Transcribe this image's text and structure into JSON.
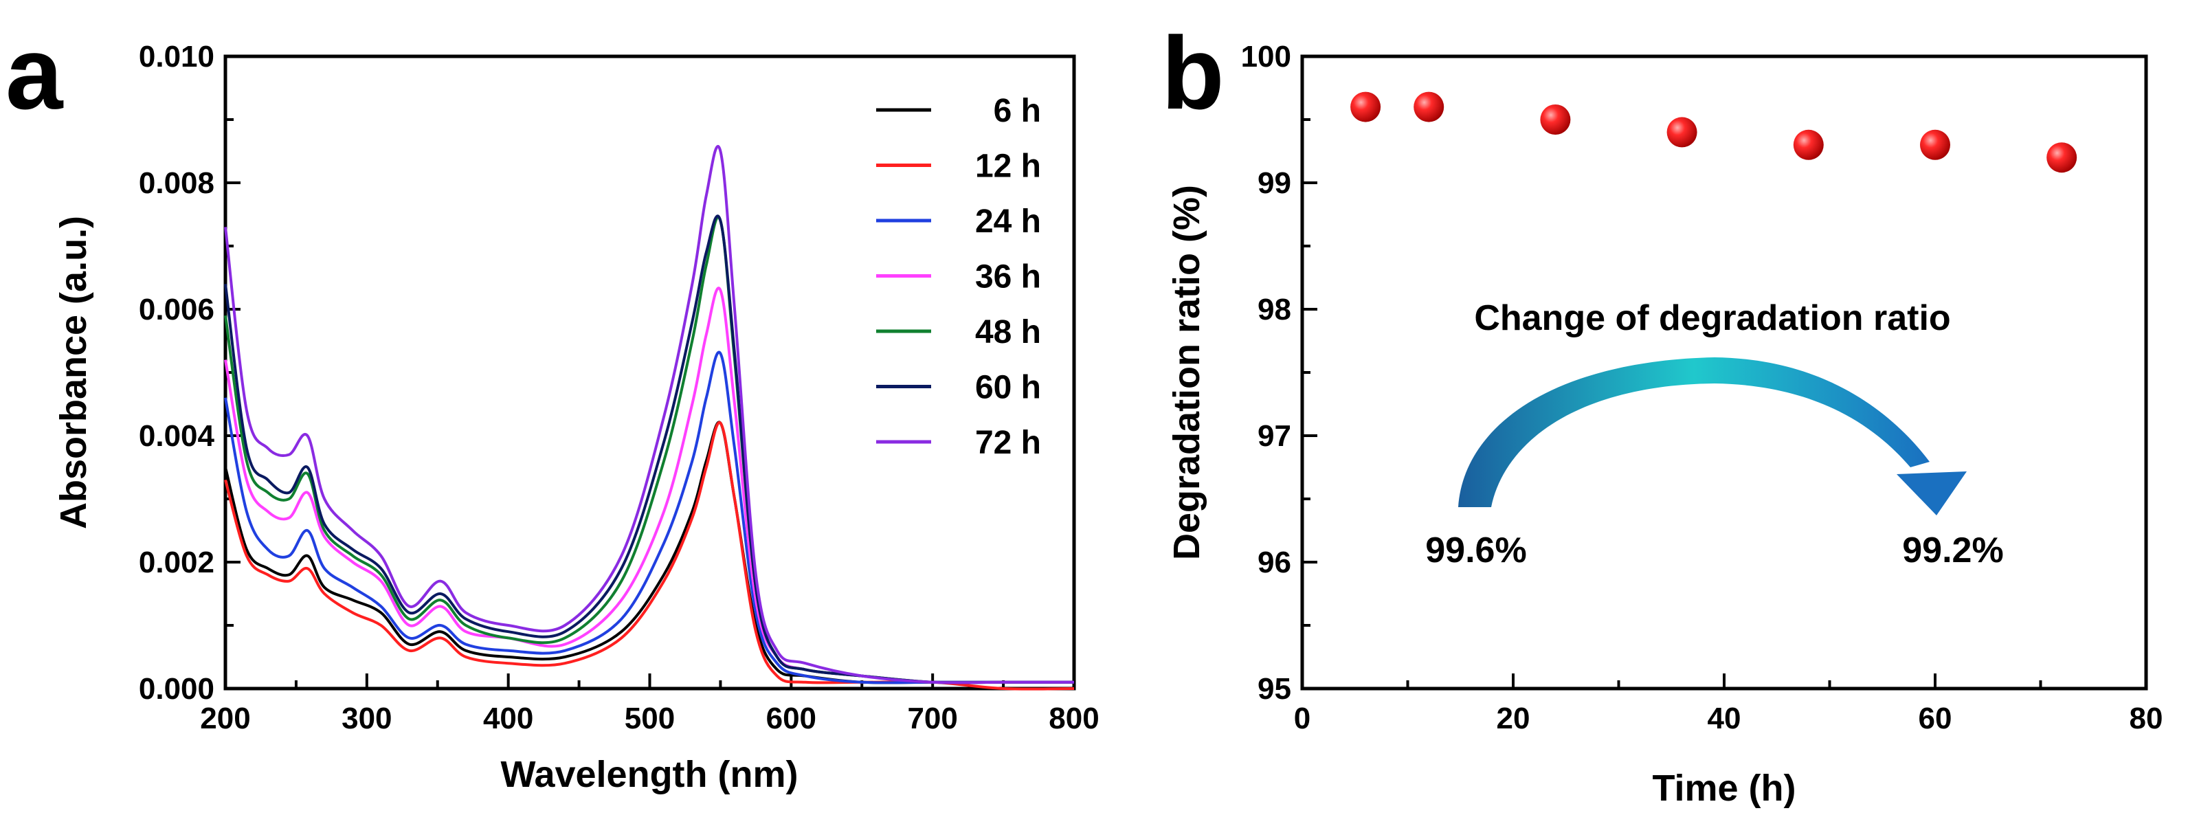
{
  "chart_data": [
    {
      "panel": "a",
      "type": "line",
      "xlabel": "Wavelength (nm)",
      "ylabel": "Absorbance (a.u.)",
      "xlim": [
        200,
        800
      ],
      "ylim": [
        0,
        0.01
      ],
      "xticks": [
        "200",
        "300",
        "400",
        "500",
        "600",
        "700",
        "800"
      ],
      "yticks": [
        "0.000",
        "0.002",
        "0.004",
        "0.006",
        "0.008",
        "0.010"
      ],
      "legend_position": "top-right",
      "x": [
        200,
        215,
        230,
        245,
        258,
        270,
        290,
        310,
        330,
        352,
        370,
        400,
        440,
        480,
        510,
        530,
        540,
        550,
        560,
        575,
        590,
        610,
        650,
        700,
        750,
        800
      ],
      "series": [
        {
          "name": "6 h",
          "color": "#000000",
          "values": [
            0.0035,
            0.0022,
            0.0019,
            0.0018,
            0.0021,
            0.0016,
            0.0014,
            0.0012,
            0.0007,
            0.0009,
            0.0006,
            0.0005,
            0.0005,
            0.0009,
            0.0018,
            0.0028,
            0.0036,
            0.0042,
            0.003,
            0.001,
            0.0003,
            0.0002,
            0.0001,
            0.0001,
            0.0001,
            0.0001
          ]
        },
        {
          "name": "12 h",
          "color": "#ff2020",
          "values": [
            0.0033,
            0.0021,
            0.0018,
            0.0017,
            0.0019,
            0.0015,
            0.0012,
            0.001,
            0.0006,
            0.0008,
            0.0005,
            0.0004,
            0.0004,
            0.0008,
            0.0017,
            0.0027,
            0.0035,
            0.0042,
            0.003,
            0.0009,
            0.0002,
            0.0001,
            0.0001,
            0.0001,
            0.0,
            0.0
          ]
        },
        {
          "name": "24 h",
          "color": "#2040e0",
          "values": [
            0.0046,
            0.0028,
            0.0022,
            0.0021,
            0.0025,
            0.0019,
            0.0016,
            0.0013,
            0.0008,
            0.001,
            0.0007,
            0.0006,
            0.0006,
            0.0011,
            0.0023,
            0.0036,
            0.0046,
            0.0053,
            0.0038,
            0.0012,
            0.0004,
            0.0002,
            0.0001,
            0.0001,
            0.0001,
            0.0001
          ]
        },
        {
          "name": "36 h",
          "color": "#ff40ff",
          "values": [
            0.0052,
            0.0033,
            0.0028,
            0.0027,
            0.0031,
            0.0024,
            0.002,
            0.0017,
            0.001,
            0.0013,
            0.0009,
            0.0008,
            0.0007,
            0.0014,
            0.0028,
            0.0045,
            0.0056,
            0.0063,
            0.0045,
            0.0014,
            0.0005,
            0.0003,
            0.0002,
            0.0001,
            0.0001,
            0.0001
          ]
        },
        {
          "name": "48 h",
          "color": "#108030",
          "values": [
            0.0059,
            0.0036,
            0.0031,
            0.003,
            0.0034,
            0.0025,
            0.0021,
            0.0018,
            0.0011,
            0.0014,
            0.001,
            0.0008,
            0.0008,
            0.0017,
            0.0036,
            0.0055,
            0.0067,
            0.0074,
            0.0052,
            0.0016,
            0.0005,
            0.0003,
            0.0002,
            0.0001,
            0.0001,
            0.0001
          ]
        },
        {
          "name": "60 h",
          "color": "#0a1a60",
          "values": [
            0.0064,
            0.0038,
            0.0033,
            0.0031,
            0.0035,
            0.0026,
            0.0022,
            0.0019,
            0.0012,
            0.0015,
            0.0011,
            0.0009,
            0.0009,
            0.0019,
            0.0039,
            0.0058,
            0.0069,
            0.0074,
            0.0053,
            0.0016,
            0.0005,
            0.0003,
            0.0002,
            0.0001,
            0.0001,
            0.0001
          ]
        },
        {
          "name": "72 h",
          "color": "#8a2be2",
          "values": [
            0.0073,
            0.0044,
            0.0038,
            0.0037,
            0.004,
            0.003,
            0.0025,
            0.0021,
            0.0013,
            0.0017,
            0.0012,
            0.001,
            0.001,
            0.0021,
            0.0043,
            0.0064,
            0.0078,
            0.0085,
            0.006,
            0.0018,
            0.0006,
            0.0004,
            0.0002,
            0.0001,
            0.0001,
            0.0001
          ]
        }
      ]
    },
    {
      "panel": "b",
      "type": "scatter",
      "xlabel": "Time (h)",
      "ylabel": "Degradation ratio (%)",
      "xlim": [
        0,
        80
      ],
      "ylim": [
        95,
        100
      ],
      "xticks": [
        "0",
        "20",
        "40",
        "60",
        "80"
      ],
      "yticks": [
        "95",
        "96",
        "97",
        "98",
        "99",
        "100"
      ],
      "marker_color": "#e01010",
      "x": [
        6,
        12,
        24,
        36,
        48,
        60,
        72
      ],
      "y": [
        99.6,
        99.6,
        99.5,
        99.4,
        99.3,
        99.3,
        99.2
      ],
      "annotation_title": "Change of degradation ratio",
      "annotation_start": "99.6%",
      "annotation_end": "99.2%"
    }
  ]
}
